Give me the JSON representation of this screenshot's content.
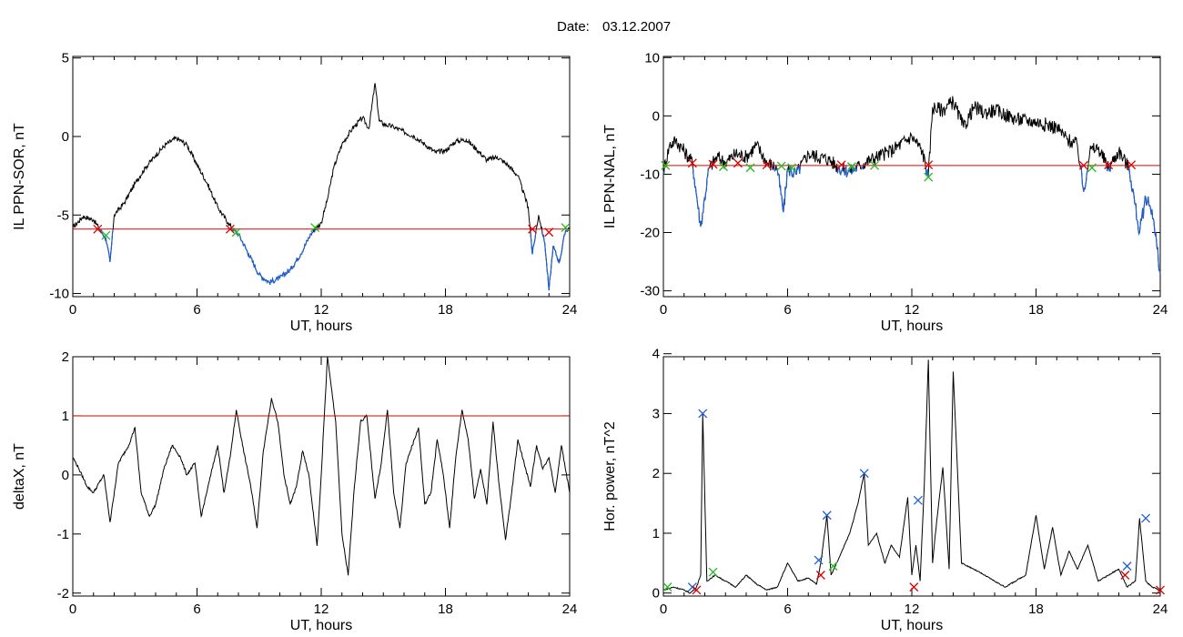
{
  "figure": {
    "date_label": "Date:",
    "date_value": "03.12.2007"
  },
  "chart_data": [
    {
      "type": "line",
      "xlabel": "UT, hours",
      "ylabel": "IL PPN-SOR, nT",
      "xlim": [
        0,
        24
      ],
      "ylim": [
        -10.2,
        5.1
      ],
      "xticks": [
        0,
        6,
        12,
        18,
        24
      ],
      "yticks": [
        -10,
        -5,
        0,
        5
      ],
      "threshold": -5.9,
      "colors": {
        "line": "#000000",
        "below": "#1f5fd0",
        "threshold": "#e00000"
      },
      "series": [
        {
          "x": [
            0,
            0.5,
            1,
            1.3,
            1.6,
            1.8,
            2,
            2.5,
            3,
            3.5,
            4,
            4.5,
            5,
            5.5,
            6,
            6.5,
            7,
            7.5,
            7.8,
            8,
            8.5,
            9,
            9.5,
            10,
            10.5,
            11,
            11.5,
            12,
            12.3,
            12.6,
            13,
            13.5,
            14,
            14.3,
            14.6,
            14.8,
            15,
            15.5,
            16,
            16.5,
            17,
            17.5,
            18,
            18.5,
            19,
            19.5,
            20,
            20.5,
            21,
            21.5,
            22,
            22.2,
            22.5,
            22.8,
            23,
            23.2,
            23.5,
            23.8,
            24
          ],
          "y": [
            -5.8,
            -5.1,
            -5.3,
            -5.9,
            -6.5,
            -8.0,
            -5.0,
            -4.2,
            -3.0,
            -2.0,
            -1.2,
            -0.5,
            -0.1,
            -0.5,
            -1.8,
            -3.0,
            -4.5,
            -5.5,
            -6.0,
            -6.2,
            -7.5,
            -8.8,
            -9.3,
            -9.0,
            -8.5,
            -7.5,
            -6.2,
            -5.5,
            -4.0,
            -2.0,
            -0.5,
            0.5,
            1.2,
            0.5,
            3.4,
            1.0,
            0.8,
            0.6,
            0.3,
            0.0,
            -0.5,
            -1.0,
            -0.9,
            -0.3,
            -0.2,
            -0.8,
            -1.5,
            -1.3,
            -1.8,
            -2.5,
            -4.5,
            -7.5,
            -5.0,
            -6.8,
            -9.8,
            -7.0,
            -8.0,
            -6.0,
            -5.8
          ]
        }
      ],
      "markers": [
        {
          "x": 1.2,
          "y": -5.9,
          "color": "#e00000"
        },
        {
          "x": 1.6,
          "y": -6.3,
          "color": "#22bb22"
        },
        {
          "x": 7.6,
          "y": -5.9,
          "color": "#e00000"
        },
        {
          "x": 7.9,
          "y": -6.1,
          "color": "#22bb22"
        },
        {
          "x": 11.7,
          "y": -5.8,
          "color": "#22bb22"
        },
        {
          "x": 22.2,
          "y": -5.9,
          "color": "#e00000"
        },
        {
          "x": 23.0,
          "y": -6.1,
          "color": "#e00000"
        },
        {
          "x": 23.8,
          "y": -5.8,
          "color": "#22bb22"
        }
      ]
    },
    {
      "type": "line",
      "xlabel": "UT, hours",
      "ylabel": "IL PPN-NAL, nT",
      "xlim": [
        0,
        24
      ],
      "ylim": [
        -31,
        10.2
      ],
      "xticks": [
        0,
        6,
        12,
        18,
        24
      ],
      "yticks": [
        -30,
        -20,
        -10,
        0,
        10
      ],
      "threshold": -8.5,
      "colors": {
        "line": "#000000",
        "below": "#1f5fd0",
        "threshold": "#e00000"
      },
      "series": [
        {
          "x": [
            0,
            0.3,
            0.6,
            1,
            1.4,
            1.8,
            2.2,
            2.6,
            3,
            3.5,
            4,
            4.5,
            5,
            5.5,
            5.8,
            6,
            6.4,
            7,
            8,
            8.5,
            9,
            9.5,
            10,
            11,
            12,
            12.5,
            12.8,
            13,
            13.5,
            14,
            14.5,
            15,
            15.5,
            16,
            17,
            18,
            19,
            19.5,
            20,
            20.3,
            20.6,
            21,
            21.5,
            22,
            22.5,
            23,
            23.3,
            23.6,
            24
          ],
          "y": [
            -9.5,
            -5.0,
            -4.2,
            -6.0,
            -8.0,
            -19.0,
            -9.0,
            -7.0,
            -8.0,
            -6.5,
            -7.0,
            -5.0,
            -8.0,
            -9.0,
            -16.5,
            -9.0,
            -10.0,
            -6.5,
            -7.5,
            -9.0,
            -9.5,
            -8.5,
            -7.5,
            -6.0,
            -3.5,
            -6.0,
            -10.5,
            1.5,
            1.0,
            2.5,
            -2.0,
            1.5,
            0.5,
            1.0,
            -0.5,
            -1.0,
            -2.0,
            -4.0,
            -5.0,
            -13.0,
            -6.0,
            -5.5,
            -9.0,
            -6.0,
            -9.0,
            -20.0,
            -14.0,
            -16.0,
            -27.0
          ]
        }
      ],
      "markers": [
        {
          "x": 0.1,
          "y": -8.5,
          "color": "#22bb22"
        },
        {
          "x": 1.4,
          "y": -8.1,
          "color": "#e00000"
        },
        {
          "x": 2.4,
          "y": -8.3,
          "color": "#e00000"
        },
        {
          "x": 2.9,
          "y": -8.7,
          "color": "#22bb22"
        },
        {
          "x": 3.6,
          "y": -8.1,
          "color": "#e00000"
        },
        {
          "x": 4.2,
          "y": -8.9,
          "color": "#22bb22"
        },
        {
          "x": 5.0,
          "y": -8.4,
          "color": "#e00000"
        },
        {
          "x": 5.7,
          "y": -8.6,
          "color": "#22bb22"
        },
        {
          "x": 6.2,
          "y": -8.9,
          "color": "#22bb22"
        },
        {
          "x": 8.6,
          "y": -8.4,
          "color": "#e00000"
        },
        {
          "x": 9.1,
          "y": -8.7,
          "color": "#22bb22"
        },
        {
          "x": 10.2,
          "y": -8.5,
          "color": "#22bb22"
        },
        {
          "x": 12.8,
          "y": -8.4,
          "color": "#e00000"
        },
        {
          "x": 12.8,
          "y": -10.5,
          "color": "#22bb22"
        },
        {
          "x": 20.3,
          "y": -8.5,
          "color": "#e00000"
        },
        {
          "x": 20.7,
          "y": -8.9,
          "color": "#22bb22"
        },
        {
          "x": 21.5,
          "y": -8.4,
          "color": "#e00000"
        },
        {
          "x": 22.6,
          "y": -8.4,
          "color": "#e00000"
        }
      ]
    },
    {
      "type": "line",
      "xlabel": "UT, hours",
      "ylabel": "deltaX, nT",
      "xlim": [
        0,
        24
      ],
      "ylim": [
        -2.05,
        2.0
      ],
      "xticks": [
        0,
        6,
        12,
        18,
        24
      ],
      "yticks": [
        -2,
        -1,
        0,
        1,
        2
      ],
      "threshold": 1.0,
      "colors": {
        "line": "#000000",
        "threshold": "#e00000"
      },
      "series": [
        {
          "x": [
            0,
            0.3,
            0.7,
            1,
            1.5,
            1.8,
            2.2,
            2.7,
            3,
            3.3,
            3.7,
            4,
            4.4,
            4.8,
            5.2,
            5.5,
            5.9,
            6.2,
            6.6,
            7,
            7.3,
            7.6,
            7.9,
            8.2,
            8.6,
            8.9,
            9.2,
            9.6,
            9.9,
            10.2,
            10.5,
            10.8,
            11.1,
            11.4,
            11.8,
            12,
            12.3,
            12.7,
            13,
            13.3,
            13.6,
            13.9,
            14.2,
            14.6,
            14.9,
            15.2,
            15.5,
            15.8,
            16.1,
            16.4,
            16.7,
            17,
            17.3,
            17.6,
            17.9,
            18.2,
            18.5,
            18.8,
            19.1,
            19.4,
            19.7,
            20,
            20.3,
            20.6,
            20.9,
            21.2,
            21.5,
            21.8,
            22.1,
            22.4,
            22.7,
            23,
            23.3,
            23.6,
            24
          ],
          "y": [
            0.3,
            0.1,
            -0.2,
            -0.3,
            0.0,
            -0.8,
            0.2,
            0.5,
            0.8,
            -0.3,
            -0.7,
            -0.5,
            0.1,
            0.5,
            0.3,
            0.0,
            0.2,
            -0.7,
            -0.1,
            0.5,
            -0.3,
            0.3,
            1.1,
            0.5,
            -0.2,
            -0.9,
            0.4,
            1.3,
            0.9,
            0.0,
            -0.5,
            -0.2,
            0.4,
            0.0,
            -1.2,
            0.0,
            2.0,
            0.9,
            -1.0,
            -1.7,
            -0.2,
            0.9,
            1.0,
            -0.4,
            0.2,
            1.1,
            -0.3,
            -0.9,
            0.2,
            0.5,
            0.8,
            -0.5,
            -0.3,
            0.6,
            0.0,
            -0.9,
            0.3,
            1.1,
            0.6,
            -0.4,
            0.1,
            -0.5,
            0.9,
            -0.2,
            -1.1,
            -0.3,
            0.6,
            0.2,
            -0.2,
            0.5,
            0.1,
            0.3,
            -0.3,
            0.5,
            -0.3
          ]
        }
      ],
      "markers": []
    },
    {
      "type": "line",
      "xlabel": "UT, hours",
      "ylabel": "Hor. power, nT^2",
      "xlim": [
        0,
        24
      ],
      "ylim": [
        -0.05,
        3.95
      ],
      "xticks": [
        0,
        6,
        12,
        18,
        24
      ],
      "yticks": [
        0,
        1,
        2,
        3,
        4
      ],
      "colors": {
        "line": "#000000"
      },
      "series": [
        {
          "x": [
            0,
            0.5,
            1,
            1.3,
            1.6,
            1.8,
            1.9,
            2.1,
            2.5,
            3,
            3.5,
            4,
            4.5,
            5,
            5.5,
            6,
            6.5,
            7,
            7.4,
            7.6,
            7.9,
            8.1,
            8.5,
            9,
            9.4,
            9.7,
            9.9,
            10.3,
            10.7,
            11,
            11.4,
            11.8,
            12,
            12.2,
            12.4,
            12.6,
            12.8,
            13.0,
            13.2,
            13.5,
            13.8,
            14.0,
            14.4,
            15,
            15.5,
            16,
            16.5,
            17,
            17.5,
            18,
            18.4,
            18.8,
            19.2,
            19.6,
            20,
            20.5,
            21,
            21.5,
            22,
            22.4,
            22.8,
            23,
            23.3,
            23.6,
            24
          ],
          "y": [
            0.05,
            0.1,
            0.05,
            0.0,
            0.1,
            0.3,
            3.0,
            0.2,
            0.3,
            0.2,
            0.1,
            0.3,
            0.15,
            0.05,
            0.1,
            0.5,
            0.2,
            0.25,
            0.15,
            0.5,
            1.3,
            0.3,
            0.6,
            1.0,
            1.5,
            2.0,
            0.8,
            1.0,
            0.5,
            0.8,
            0.6,
            1.6,
            0.3,
            0.8,
            0.2,
            1.8,
            3.9,
            0.5,
            1.2,
            2.1,
            0.4,
            3.7,
            0.5,
            0.4,
            0.3,
            0.2,
            0.1,
            0.2,
            0.3,
            1.3,
            0.4,
            1.1,
            0.3,
            0.7,
            0.4,
            0.8,
            0.2,
            0.3,
            0.4,
            0.1,
            0.2,
            1.25,
            0.2,
            0.1,
            0.05
          ]
        }
      ],
      "markers": [
        {
          "x": 1.9,
          "y": 3.0,
          "color": "#1f5fd0"
        },
        {
          "x": 7.9,
          "y": 1.3,
          "color": "#1f5fd0"
        },
        {
          "x": 9.7,
          "y": 2.0,
          "color": "#1f5fd0"
        },
        {
          "x": 12.3,
          "y": 1.55,
          "color": "#1f5fd0"
        },
        {
          "x": 7.5,
          "y": 0.55,
          "color": "#1f5fd0"
        },
        {
          "x": 22.4,
          "y": 0.45,
          "color": "#1f5fd0"
        },
        {
          "x": 23.3,
          "y": 1.25,
          "color": "#1f5fd0"
        },
        {
          "x": 1.4,
          "y": 0.1,
          "color": "#1f5fd0"
        },
        {
          "x": 0.2,
          "y": 0.1,
          "color": "#22bb22"
        },
        {
          "x": 2.4,
          "y": 0.35,
          "color": "#22bb22"
        },
        {
          "x": 8.2,
          "y": 0.45,
          "color": "#22bb22"
        },
        {
          "x": 7.6,
          "y": 0.3,
          "color": "#e00000"
        },
        {
          "x": 12.1,
          "y": 0.1,
          "color": "#e00000"
        },
        {
          "x": 22.3,
          "y": 0.3,
          "color": "#e00000"
        },
        {
          "x": 1.6,
          "y": 0.05,
          "color": "#e00000"
        },
        {
          "x": 24.0,
          "y": 0.05,
          "color": "#e00000"
        }
      ]
    }
  ]
}
